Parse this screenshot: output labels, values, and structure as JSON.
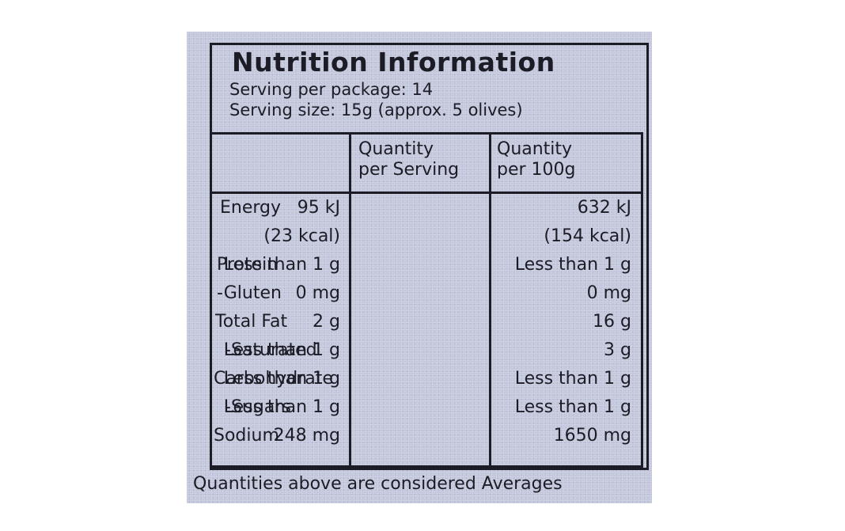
{
  "label": {
    "title": "Nutrition Information",
    "servings_per_package": "Serving per package: 14",
    "serving_size": "Serving  size: 15g (approx. 5 olives)",
    "columns": {
      "per_serving_line1": "Quantity",
      "per_serving_line2": "per Serving",
      "per_100g_line1": "Quantity",
      "per_100g_line2": "per 100g"
    },
    "rows": [
      {
        "name": "Energy",
        "per_serving": "95 kJ",
        "per_100g": "632 kJ"
      },
      {
        "name": "",
        "per_serving": "(23 kcal)",
        "per_100g": "(154 kcal)"
      },
      {
        "name": "Protein",
        "per_serving": "Less than 1 g",
        "per_100g": "Less than 1 g"
      },
      {
        "name": "-Gluten",
        "per_serving": "0 mg",
        "per_100g": "0 mg"
      },
      {
        "name": "Total Fat",
        "per_serving": "2 g",
        "per_100g": "16 g"
      },
      {
        "name": "-Saturated",
        "per_serving": "Less than 1 g",
        "per_100g": "3 g"
      },
      {
        "name": "Carbohydrate",
        "per_serving": "Less than 1 g",
        "per_100g": "Less than 1 g"
      },
      {
        "name": "-Sugars",
        "per_serving": "Less than 1 g",
        "per_100g": "Less than 1 g"
      },
      {
        "name": "Sodium",
        "per_serving": "248 mg",
        "per_100g": "1650 mg"
      }
    ],
    "footer": "Quantities above are considered Averages"
  }
}
